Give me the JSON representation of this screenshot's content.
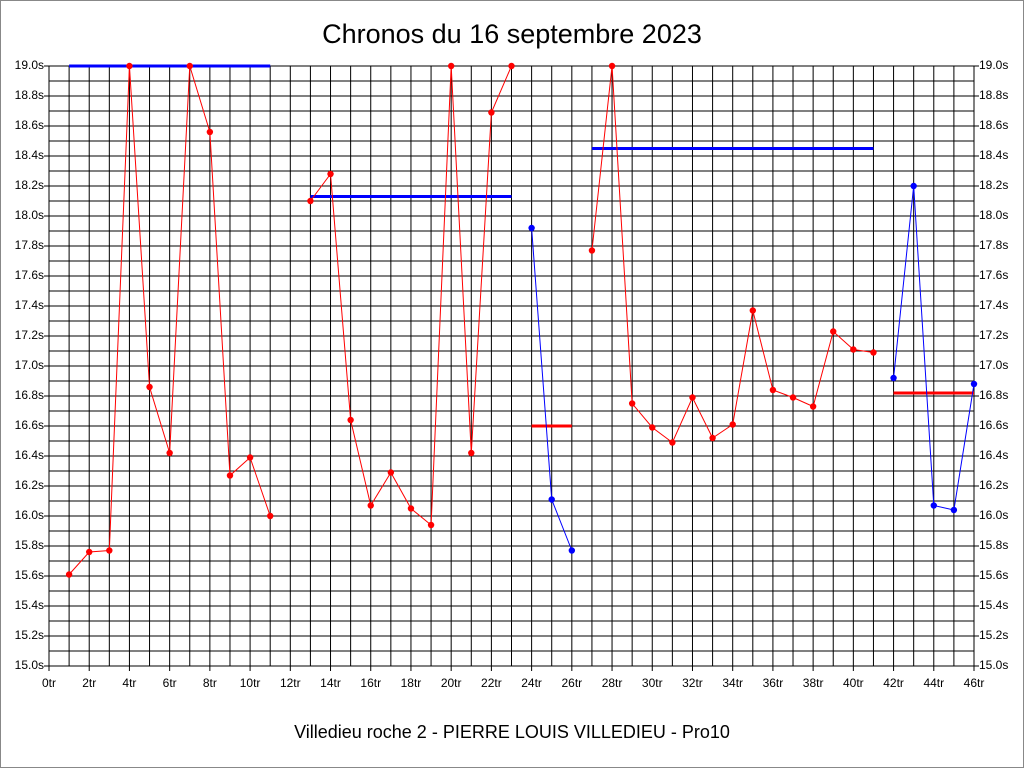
{
  "chart_data": {
    "type": "line",
    "title": "Chronos du 16 septembre 2023",
    "x_label": "Villedieu roche 2 - PIERRE LOUIS VILLEDIEU - Pro10",
    "x": [
      1,
      2,
      3,
      4,
      5,
      6,
      7,
      8,
      9,
      10,
      11,
      12,
      13,
      14,
      15,
      16,
      17,
      18,
      19,
      20,
      21,
      22,
      23,
      24,
      25,
      26,
      27,
      28,
      29,
      30,
      31,
      32,
      33,
      34,
      35,
      36,
      37,
      38,
      39,
      40,
      41,
      42,
      43,
      44,
      45,
      46
    ],
    "series": [
      {
        "color": "#ff0000",
        "values": [
          15.61,
          15.76,
          15.77,
          19.0,
          16.86,
          16.42,
          19.0,
          18.56,
          16.27,
          16.39,
          16.0,
          null,
          18.1,
          18.28,
          16.64,
          16.07,
          16.29,
          16.05,
          15.94,
          19.0,
          16.42,
          18.69,
          19.0,
          null,
          null,
          null,
          17.77,
          19.0,
          16.75,
          16.59,
          16.49,
          16.79,
          16.52,
          16.61,
          17.37,
          16.84,
          16.79,
          16.73,
          17.23,
          17.11,
          17.09,
          null,
          null,
          null,
          null,
          null
        ]
      },
      {
        "color": "#0000ff",
        "values": [
          null,
          null,
          null,
          null,
          null,
          null,
          null,
          null,
          null,
          null,
          null,
          null,
          null,
          null,
          null,
          null,
          null,
          null,
          null,
          null,
          null,
          null,
          null,
          17.92,
          16.11,
          15.77,
          null,
          null,
          null,
          null,
          null,
          null,
          null,
          null,
          null,
          null,
          null,
          null,
          null,
          null,
          null,
          16.92,
          18.2,
          16.07,
          16.04,
          16.88
        ]
      }
    ],
    "averages": [
      {
        "from": 1,
        "to": 11,
        "value": 19.0,
        "color": "#0000ff"
      },
      {
        "from": 13,
        "to": 23,
        "value": 18.13,
        "color": "#0000ff"
      },
      {
        "from": 24,
        "to": 26,
        "value": 16.6,
        "color": "#ff0000"
      },
      {
        "from": 27,
        "to": 41,
        "value": 18.45,
        "color": "#0000ff"
      },
      {
        "from": 42,
        "to": 46,
        "value": 16.82,
        "color": "#ff0000"
      }
    ],
    "xlim": [
      0,
      46
    ],
    "ylim": [
      15.0,
      19.0
    ],
    "xticks": [
      {
        "value": 0,
        "label": "0tr"
      },
      {
        "value": 2,
        "label": "2tr"
      },
      {
        "value": 4,
        "label": "4tr"
      },
      {
        "value": 6,
        "label": "6tr"
      },
      {
        "value": 8,
        "label": "8tr"
      },
      {
        "value": 10,
        "label": "10tr"
      },
      {
        "value": 12,
        "label": "12tr"
      },
      {
        "value": 14,
        "label": "14tr"
      },
      {
        "value": 16,
        "label": "16tr"
      },
      {
        "value": 18,
        "label": "18tr"
      },
      {
        "value": 20,
        "label": "20tr"
      },
      {
        "value": 22,
        "label": "22tr"
      },
      {
        "value": 24,
        "label": "24tr"
      },
      {
        "value": 26,
        "label": "26tr"
      },
      {
        "value": 28,
        "label": "28tr"
      },
      {
        "value": 30,
        "label": "30tr"
      },
      {
        "value": 32,
        "label": "32tr"
      },
      {
        "value": 34,
        "label": "34tr"
      },
      {
        "value": 36,
        "label": "36tr"
      },
      {
        "value": 38,
        "label": "38tr"
      },
      {
        "value": 40,
        "label": "40tr"
      },
      {
        "value": 42,
        "label": "42tr"
      },
      {
        "value": 44,
        "label": "44tr"
      },
      {
        "value": 46,
        "label": "46tr"
      }
    ],
    "yticks": [
      {
        "value": 15.0,
        "label": "15.0s"
      },
      {
        "value": 15.2,
        "label": "15.2s"
      },
      {
        "value": 15.4,
        "label": "15.4s"
      },
      {
        "value": 15.6,
        "label": "15.6s"
      },
      {
        "value": 15.8,
        "label": "15.8s"
      },
      {
        "value": 16.0,
        "label": "16.0s"
      },
      {
        "value": 16.2,
        "label": "16.2s"
      },
      {
        "value": 16.4,
        "label": "16.4s"
      },
      {
        "value": 16.6,
        "label": "16.6s"
      },
      {
        "value": 16.8,
        "label": "16.8s"
      },
      {
        "value": 17.0,
        "label": "17.0s"
      },
      {
        "value": 17.2,
        "label": "17.2s"
      },
      {
        "value": 17.4,
        "label": "17.4s"
      },
      {
        "value": 17.6,
        "label": "17.6s"
      },
      {
        "value": 17.8,
        "label": "17.8s"
      },
      {
        "value": 18.0,
        "label": "18.0s"
      },
      {
        "value": 18.2,
        "label": "18.2s"
      },
      {
        "value": 18.4,
        "label": "18.4s"
      },
      {
        "value": 18.6,
        "label": "18.6s"
      },
      {
        "value": 18.8,
        "label": "18.8s"
      },
      {
        "value": 19.0,
        "label": "19.0s"
      }
    ],
    "xminor": [
      1,
      3,
      5,
      7,
      9,
      11,
      13,
      15,
      17,
      19,
      21,
      23,
      25,
      27,
      29,
      31,
      33,
      35,
      37,
      39,
      41,
      43,
      45
    ],
    "yminor": [
      15.1,
      15.3,
      15.5,
      15.7,
      15.9,
      16.1,
      16.3,
      16.5,
      16.7,
      16.9,
      17.1,
      17.3,
      17.5,
      17.7,
      17.9,
      18.1,
      18.3,
      18.5,
      18.7,
      18.9
    ],
    "grid": true
  }
}
